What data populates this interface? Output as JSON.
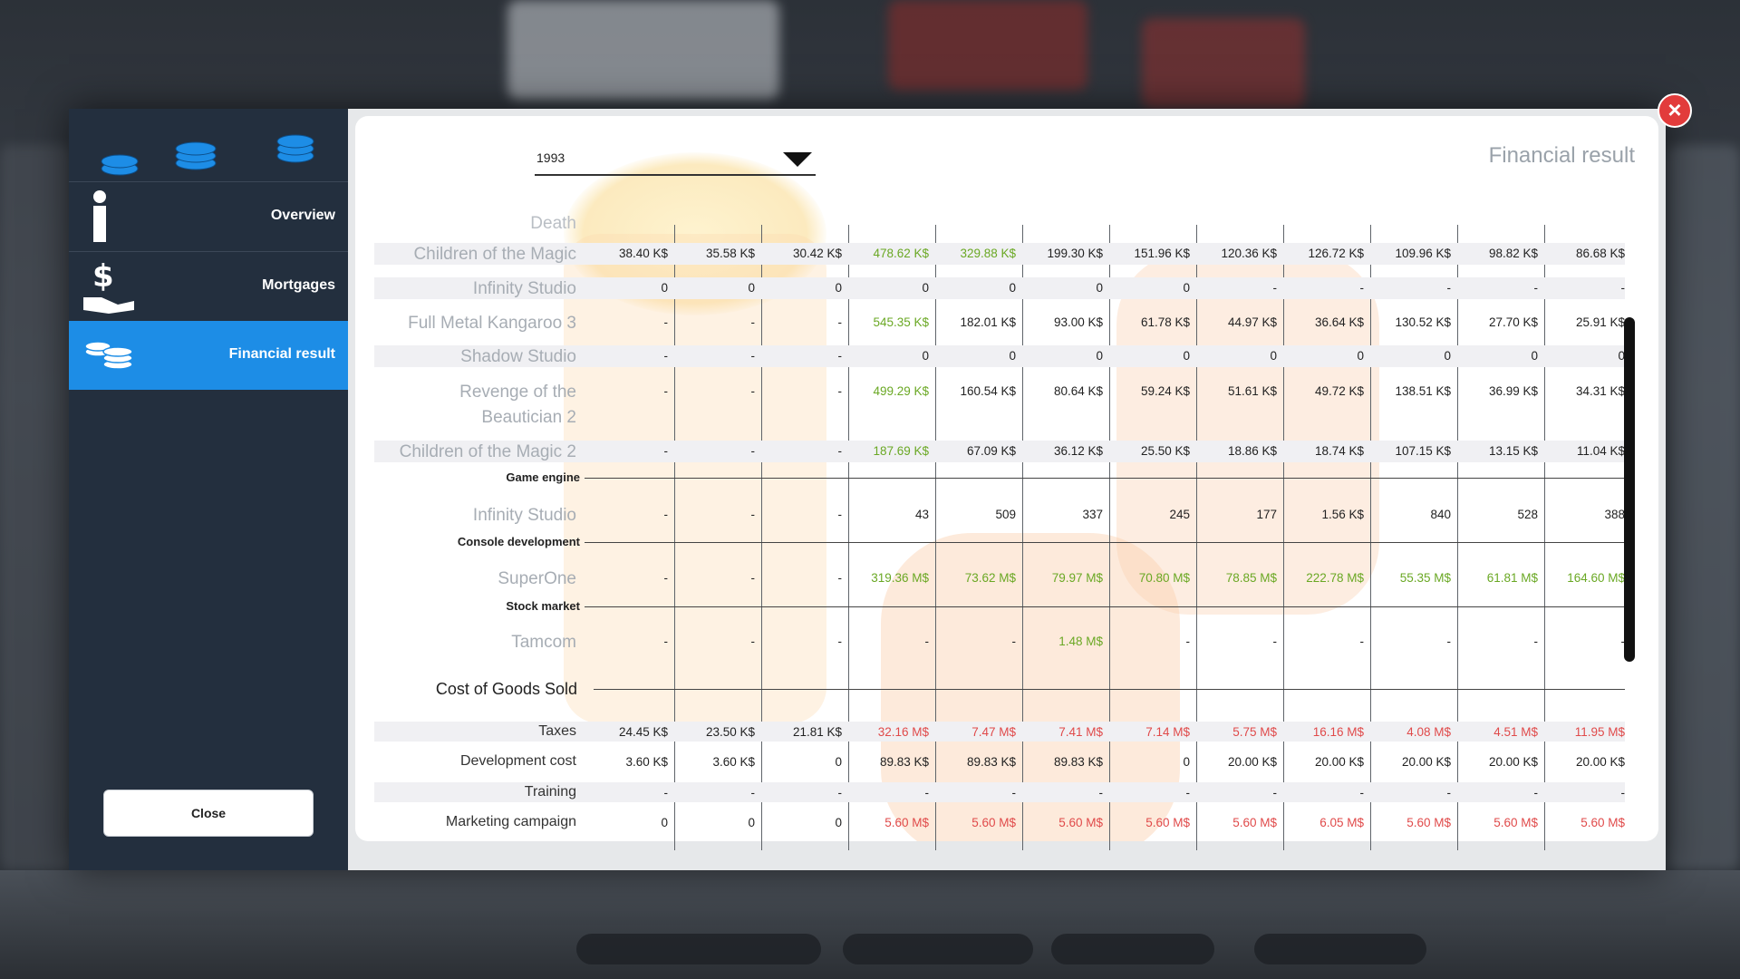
{
  "sidebar": {
    "items": [
      {
        "label": "Overview",
        "icon": "info-icon"
      },
      {
        "label": "Mortgages",
        "icon": "money-hand-icon"
      },
      {
        "label": "Financial result",
        "icon": "coin-stack-icon"
      }
    ],
    "close_label": "Close"
  },
  "panel": {
    "title": "Financial result",
    "year": "1993"
  },
  "rows": [
    {
      "label": "Children of the Magic",
      "values": [
        "38.40 K$",
        "35.58 K$",
        "30.42 K$",
        "478.62 K$",
        "329.88 K$",
        "199.30 K$",
        "151.96 K$",
        "120.36 K$",
        "126.72 K$",
        "109.96 K$",
        "98.82 K$",
        "86.68 K$"
      ]
    },
    {
      "label": "Infinity Studio",
      "values": [
        "0",
        "0",
        "0",
        "0",
        "0",
        "0",
        "0",
        "-",
        "-",
        "-",
        "-",
        "-"
      ]
    },
    {
      "label": "Full Metal Kangaroo 3",
      "values": [
        "-",
        "-",
        "-",
        "545.35 K$",
        "182.01 K$",
        "93.00 K$",
        "61.78 K$",
        "44.97 K$",
        "36.64 K$",
        "130.52 K$",
        "27.70 K$",
        "25.91 K$"
      ]
    },
    {
      "label": "Shadow Studio",
      "values": [
        "-",
        "-",
        "-",
        "0",
        "0",
        "0",
        "0",
        "0",
        "0",
        "0",
        "0",
        "0"
      ]
    },
    {
      "label": "Revenge of the",
      "label2": "Beautician 2",
      "values": [
        "-",
        "-",
        "-",
        "499.29 K$",
        "160.54 K$",
        "80.64 K$",
        "59.24 K$",
        "51.61 K$",
        "49.72 K$",
        "138.51 K$",
        "36.99 K$",
        "34.31 K$"
      ]
    },
    {
      "label": "Children of the Magic 2",
      "values": [
        "-",
        "-",
        "-",
        "187.69 K$",
        "67.09 K$",
        "36.12 K$",
        "25.50 K$",
        "18.86 K$",
        "18.74 K$",
        "107.15 K$",
        "13.15 K$",
        "11.04 K$"
      ]
    },
    {
      "label": "Infinity Studio",
      "values": [
        "-",
        "-",
        "-",
        "43",
        "509",
        "337",
        "245",
        "177",
        "1.56 K$",
        "840",
        "528",
        "388"
      ]
    },
    {
      "label": "SuperOne",
      "values": [
        "-",
        "-",
        "-",
        "319.36 M$",
        "73.62 M$",
        "79.97 M$",
        "70.80 M$",
        "78.85 M$",
        "222.78 M$",
        "55.35 M$",
        "61.81 M$",
        "164.60 M$"
      ]
    },
    {
      "label": "Tamcom",
      "values": [
        "-",
        "-",
        "-",
        "-",
        "-",
        "1.48 M$",
        "-",
        "-",
        "-",
        "-",
        "-",
        "-"
      ]
    },
    {
      "label": "Taxes",
      "values": [
        "24.45 K$",
        "23.50 K$",
        "21.81 K$",
        "32.16 M$",
        "7.47 M$",
        "7.41 M$",
        "7.14 M$",
        "5.75 M$",
        "16.16 M$",
        "4.08 M$",
        "4.51 M$",
        "11.95 M$"
      ]
    },
    {
      "label": "Development cost",
      "values": [
        "3.60 K$",
        "3.60 K$",
        "0",
        "89.83 K$",
        "89.83 K$",
        "89.83 K$",
        "0",
        "20.00 K$",
        "20.00 K$",
        "20.00 K$",
        "20.00 K$",
        "20.00 K$"
      ]
    },
    {
      "label": "Training",
      "values": [
        "-",
        "-",
        "-",
        "-",
        "-",
        "-",
        "-",
        "-",
        "-",
        "-",
        "-",
        "-"
      ]
    },
    {
      "label": "Marketing campaign",
      "values": [
        "0",
        "0",
        "0",
        "5.60 M$",
        "5.60 M$",
        "5.60 M$",
        "5.60 M$",
        "5.60 M$",
        "6.05 M$",
        "5.60 M$",
        "5.60 M$",
        "5.60 M$"
      ]
    }
  ],
  "sections": {
    "top_cut": "Death",
    "game_engine": "Game engine",
    "console_dev": "Console development",
    "stock_market": "Stock market",
    "cogs": "Cost of Goods Sold"
  },
  "colors": {
    "accent": "#1d8de6",
    "positive": "#6aa824",
    "negative": "#e04a4a"
  }
}
